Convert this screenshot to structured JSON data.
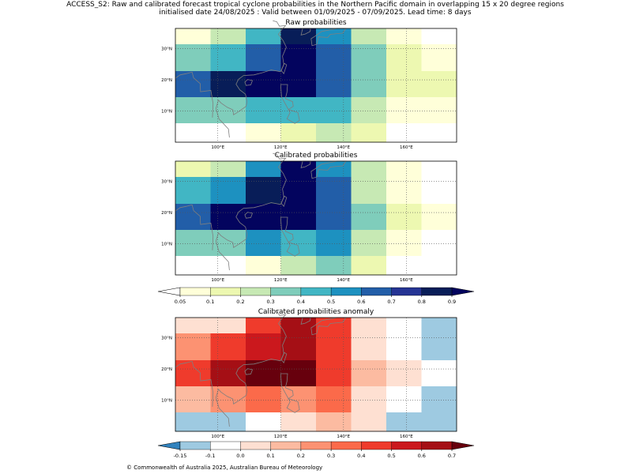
{
  "figure": {
    "title_line1": "ACCESS_S2: Raw and calibrated forecast tropical cyclone probabilities in the Northern Pacific domain in overlapping 15 x 20 degree regions",
    "title_line2": "initialised date 24/08/2025 :  Valid between 01/09/2025 - 07/09/2025. Lead time: 8 days",
    "copyright": "© Commonwealth of Australia 2025, Australian Bureau of Meteorology"
  },
  "chart_data": [
    {
      "type": "heatmap",
      "title": "Raw probabilities",
      "x_tick_labels": [
        "100°E",
        "120°E",
        "140°E",
        "160°E"
      ],
      "y_tick_labels": [
        "10°N",
        "20°N",
        "30°N"
      ],
      "rows_top_to_bottom": [
        [
          0.05,
          0.2,
          0.4,
          0.8,
          0.5,
          0.2,
          0.05,
          0
        ],
        [
          0.3,
          0.4,
          0.6,
          0.9,
          0.6,
          0.3,
          0.1,
          0.05
        ],
        [
          0.6,
          0.8,
          0.9,
          0.9,
          0.6,
          0.3,
          0.1,
          0.1
        ],
        [
          0.3,
          0.3,
          0.4,
          0.4,
          0.4,
          0.2,
          0.05,
          0.05
        ],
        [
          0,
          0,
          0.05,
          0.1,
          0.2,
          0.1,
          0,
          0
        ]
      ]
    },
    {
      "type": "heatmap",
      "title": "Calibrated probabilities",
      "x_tick_labels": [
        "100°E",
        "120°E",
        "140°E",
        "160°E"
      ],
      "y_tick_labels": [
        "10°N",
        "20°N",
        "30°N"
      ],
      "rows_top_to_bottom": [
        [
          0.1,
          0.2,
          0.5,
          0.9,
          0.5,
          0.2,
          0.05,
          0
        ],
        [
          0.4,
          0.5,
          0.8,
          0.9,
          0.6,
          0.2,
          0.05,
          0
        ],
        [
          0.6,
          0.9,
          0.95,
          0.95,
          0.6,
          0.3,
          0.1,
          0.05
        ],
        [
          0.3,
          0.3,
          0.5,
          0.4,
          0.5,
          0.2,
          0.05,
          0
        ],
        [
          0,
          0,
          0.05,
          0.2,
          0.3,
          0.1,
          0,
          0
        ]
      ]
    },
    {
      "type": "heatmap",
      "title": "Calibrated probabilities anomaly",
      "x_tick_labels": [
        "100°E",
        "120°E",
        "140°E",
        "160°E"
      ],
      "y_tick_labels": [
        "10°N",
        "20°N",
        "30°N"
      ],
      "rows_top_to_bottom": [
        [
          0,
          0.05,
          0.4,
          0.6,
          0.4,
          0.05,
          -0.1,
          -0.15
        ],
        [
          0.2,
          0.4,
          0.5,
          0.6,
          0.4,
          0.05,
          -0.1,
          -0.15
        ],
        [
          0.4,
          0.6,
          0.7,
          0.7,
          0.4,
          0.15,
          0,
          -0.1
        ],
        [
          0.1,
          0.2,
          0.3,
          0.2,
          0.3,
          0.05,
          -0.1,
          -0.15
        ],
        [
          -0.15,
          -0.15,
          -0.1,
          0.05,
          0.15,
          0,
          -0.15,
          -0.15
        ]
      ]
    }
  ],
  "colorbars": [
    {
      "tick_labels": [
        "0.05",
        "0.1",
        "0.2",
        "0.3",
        "0.4",
        "0.5",
        "0.6",
        "0.7",
        "0.8",
        "0.9"
      ],
      "bounds": [
        0.05,
        0.1,
        0.2,
        0.3,
        0.4,
        0.5,
        0.6,
        0.7,
        0.8,
        0.9
      ],
      "under_color": "#ffffff",
      "colors": [
        "#ffffd9",
        "#edf8b1",
        "#c7e9b4",
        "#7fcdbb",
        "#41b6c4",
        "#1d91c0",
        "#225ea8",
        "#253494",
        "#081d58"
      ],
      "over_color": "#03045e"
    },
    {
      "tick_labels": [
        "-0.15",
        "-0.1",
        "0.0",
        "0.1",
        "0.2",
        "0.3",
        "0.4",
        "0.5",
        "0.6",
        "0.7"
      ],
      "bounds": [
        -0.15,
        -0.1,
        0.0,
        0.1,
        0.2,
        0.3,
        0.4,
        0.5,
        0.6,
        0.7
      ],
      "under_color": "#3182bd",
      "colors": [
        "#9ecae1",
        "#ffffff",
        "#fee0d2",
        "#fcbba1",
        "#fc9272",
        "#fb6a4a",
        "#ef3b2c",
        "#cb181d",
        "#a50f15"
      ],
      "over_color": "#67000d"
    }
  ]
}
